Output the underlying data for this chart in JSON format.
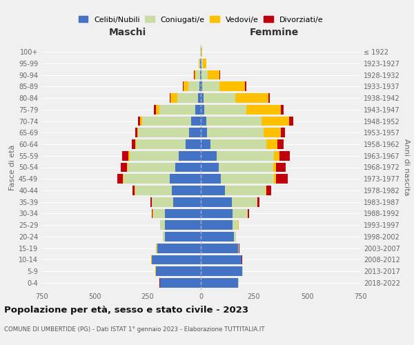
{
  "age_groups": [
    "0-4",
    "5-9",
    "10-14",
    "15-19",
    "20-24",
    "25-29",
    "30-34",
    "35-39",
    "40-44",
    "45-49",
    "50-54",
    "55-59",
    "60-64",
    "65-69",
    "70-74",
    "75-79",
    "80-84",
    "85-89",
    "90-94",
    "95-99",
    "100+"
  ],
  "birth_years": [
    "2018-2022",
    "2013-2017",
    "2008-2012",
    "2003-2007",
    "1998-2002",
    "1993-1997",
    "1988-1992",
    "1983-1987",
    "1978-1982",
    "1973-1977",
    "1968-1972",
    "1963-1967",
    "1958-1962",
    "1953-1957",
    "1948-1952",
    "1943-1947",
    "1938-1942",
    "1933-1937",
    "1928-1932",
    "1923-1927",
    "≤ 1922"
  ],
  "males": {
    "celibi": [
      190,
      210,
      230,
      205,
      170,
      170,
      170,
      130,
      135,
      145,
      120,
      105,
      70,
      55,
      45,
      25,
      12,
      7,
      4,
      2,
      1
    ],
    "coniugati": [
      2,
      2,
      2,
      4,
      8,
      20,
      55,
      100,
      175,
      220,
      225,
      230,
      235,
      240,
      230,
      170,
      100,
      50,
      18,
      5,
      2
    ],
    "vedovi": [
      1,
      1,
      1,
      1,
      1,
      1,
      2,
      2,
      2,
      2,
      3,
      5,
      5,
      5,
      12,
      15,
      30,
      25,
      8,
      2,
      0
    ],
    "divorziati": [
      1,
      1,
      1,
      1,
      1,
      2,
      3,
      5,
      10,
      25,
      30,
      30,
      15,
      10,
      10,
      10,
      5,
      2,
      2,
      0,
      0
    ]
  },
  "females": {
    "nubili": [
      175,
      195,
      190,
      175,
      155,
      150,
      150,
      145,
      115,
      95,
      85,
      75,
      45,
      30,
      25,
      15,
      12,
      8,
      4,
      2,
      1
    ],
    "coniugate": [
      2,
      2,
      2,
      4,
      10,
      25,
      70,
      120,
      190,
      250,
      255,
      270,
      265,
      265,
      260,
      200,
      150,
      80,
      30,
      8,
      2
    ],
    "vedove": [
      1,
      1,
      1,
      1,
      1,
      2,
      2,
      2,
      5,
      8,
      15,
      25,
      50,
      80,
      130,
      160,
      155,
      120,
      55,
      15,
      2
    ],
    "divorziate": [
      1,
      1,
      1,
      1,
      1,
      2,
      5,
      8,
      20,
      55,
      45,
      50,
      30,
      20,
      20,
      15,
      8,
      5,
      2,
      2,
      0
    ]
  },
  "colors": {
    "celibi_nubili": "#4472c4",
    "coniugati": "#c8dca4",
    "vedovi": "#ffc000",
    "divorziati": "#c0000b"
  },
  "xlim": 750,
  "title": "Popolazione per età, sesso e stato civile - 2023",
  "subtitle": "COMUNE DI UMBERTIDE (PG) - Dati ISTAT 1° gennaio 2023 - Elaborazione TUTTITALIA.IT",
  "ylabel_left": "Fasce di età",
  "ylabel_right": "Anni di nascita",
  "xlabel_maschi": "Maschi",
  "xlabel_femmine": "Femmine",
  "bg_color": "#f0f0f0",
  "grid_color": "#ffffff"
}
